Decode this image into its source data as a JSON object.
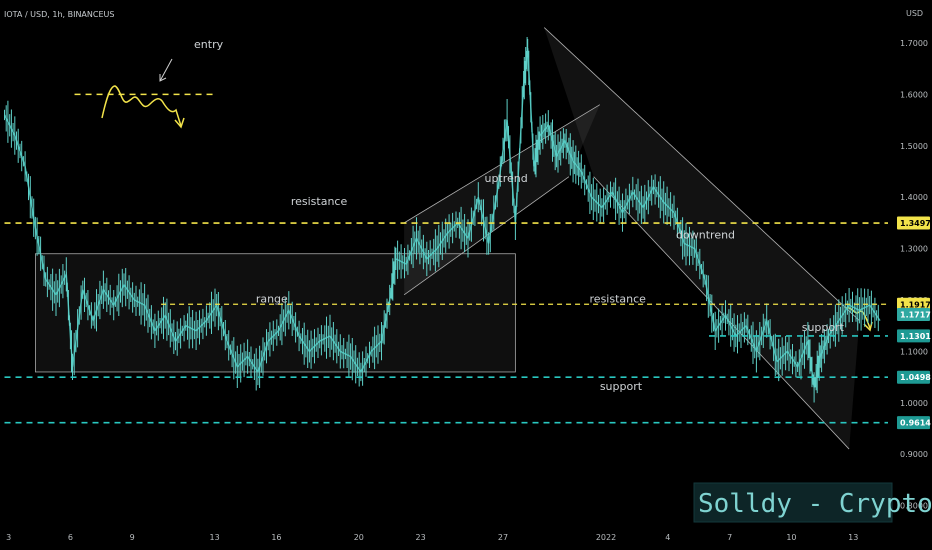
{
  "header": {
    "symbol": "IOTA / USD, 1h, BINANCEUS",
    "currency": "USD"
  },
  "brand_label": "Solldy - Crypto for U",
  "colors": {
    "background": "#000000",
    "price_line": "#3fb6b0",
    "resistance": "#f2e34a",
    "support": "#29c7c0",
    "box": "#9a9a9a"
  },
  "chart_data": {
    "type": "line",
    "title": "IOTA / USD, 1h, BINANCEUS",
    "xlabel": "",
    "ylabel": "USD",
    "ylim": [
      0.77,
      1.77
    ],
    "grid": false,
    "y_ticks": [
      "1.7000",
      "1.6000",
      "1.5000",
      "1.4000",
      "1.3000",
      "1.2000",
      "1.1000",
      "1.0000",
      "0.9000",
      "0.8000"
    ],
    "x_ticks": [
      {
        "label": "3",
        "t": 0.2
      },
      {
        "label": "6",
        "t": 3.2
      },
      {
        "label": "9",
        "t": 6.2
      },
      {
        "label": "13",
        "t": 10.2
      },
      {
        "label": "16",
        "t": 13.2
      },
      {
        "label": "20",
        "t": 17.2
      },
      {
        "label": "23",
        "t": 20.2
      },
      {
        "label": "27",
        "t": 24.2
      },
      {
        "label": "2022",
        "t": 29.2
      },
      {
        "label": "4",
        "t": 32.2
      },
      {
        "label": "7",
        "t": 35.2
      },
      {
        "label": "10",
        "t": 38.2
      },
      {
        "label": "13",
        "t": 41.2
      }
    ],
    "price_series": [
      [
        0.0,
        1.56
      ],
      [
        0.5,
        1.52
      ],
      [
        1.0,
        1.46
      ],
      [
        1.5,
        1.34
      ],
      [
        2.0,
        1.24
      ],
      [
        2.5,
        1.21
      ],
      [
        3.0,
        1.25
      ],
      [
        3.3,
        1.07
      ],
      [
        3.8,
        1.22
      ],
      [
        4.3,
        1.16
      ],
      [
        4.8,
        1.22
      ],
      [
        5.3,
        1.19
      ],
      [
        5.8,
        1.23
      ],
      [
        6.3,
        1.2
      ],
      [
        6.8,
        1.19
      ],
      [
        7.3,
        1.14
      ],
      [
        7.8,
        1.17
      ],
      [
        8.3,
        1.12
      ],
      [
        8.8,
        1.15
      ],
      [
        9.3,
        1.14
      ],
      [
        9.8,
        1.16
      ],
      [
        10.3,
        1.19
      ],
      [
        10.8,
        1.12
      ],
      [
        11.3,
        1.07
      ],
      [
        11.8,
        1.09
      ],
      [
        12.3,
        1.06
      ],
      [
        12.8,
        1.12
      ],
      [
        13.3,
        1.14
      ],
      [
        13.8,
        1.18
      ],
      [
        14.3,
        1.13
      ],
      [
        14.8,
        1.1
      ],
      [
        15.3,
        1.12
      ],
      [
        15.8,
        1.13
      ],
      [
        16.3,
        1.1
      ],
      [
        16.8,
        1.09
      ],
      [
        17.3,
        1.06
      ],
      [
        17.8,
        1.1
      ],
      [
        18.3,
        1.12
      ],
      [
        18.7,
        1.2
      ],
      [
        19.0,
        1.28
      ],
      [
        19.5,
        1.27
      ],
      [
        20.0,
        1.32
      ],
      [
        20.5,
        1.28
      ],
      [
        21.0,
        1.3
      ],
      [
        21.5,
        1.33
      ],
      [
        22.0,
        1.35
      ],
      [
        22.5,
        1.32
      ],
      [
        23.0,
        1.4
      ],
      [
        23.5,
        1.31
      ],
      [
        24.0,
        1.43
      ],
      [
        24.4,
        1.55
      ],
      [
        24.8,
        1.35
      ],
      [
        25.2,
        1.62
      ],
      [
        25.4,
        1.69
      ],
      [
        25.7,
        1.46
      ],
      [
        26.0,
        1.52
      ],
      [
        26.4,
        1.54
      ],
      [
        26.8,
        1.48
      ],
      [
        27.2,
        1.51
      ],
      [
        27.6,
        1.47
      ],
      [
        28.0,
        1.45
      ],
      [
        28.5,
        1.4
      ],
      [
        29.0,
        1.38
      ],
      [
        29.5,
        1.41
      ],
      [
        30.0,
        1.37
      ],
      [
        30.5,
        1.41
      ],
      [
        31.0,
        1.38
      ],
      [
        31.5,
        1.42
      ],
      [
        32.0,
        1.39
      ],
      [
        32.5,
        1.37
      ],
      [
        33.0,
        1.31
      ],
      [
        33.5,
        1.3
      ],
      [
        34.0,
        1.24
      ],
      [
        34.5,
        1.14
      ],
      [
        35.0,
        1.17
      ],
      [
        35.5,
        1.13
      ],
      [
        36.0,
        1.15
      ],
      [
        36.5,
        1.1
      ],
      [
        37.0,
        1.16
      ],
      [
        37.5,
        1.08
      ],
      [
        38.0,
        1.1
      ],
      [
        38.5,
        1.07
      ],
      [
        39.0,
        1.12
      ],
      [
        39.3,
        1.03
      ],
      [
        39.6,
        1.09
      ],
      [
        40.0,
        1.13
      ],
      [
        40.5,
        1.16
      ],
      [
        41.0,
        1.19
      ],
      [
        41.5,
        1.18
      ],
      [
        42.0,
        1.19
      ],
      [
        42.5,
        1.16
      ]
    ],
    "levels": [
      {
        "label": "1.3497",
        "value": 1.3497,
        "kind": "resistance"
      },
      {
        "label": "1.1917",
        "value": 1.1917,
        "kind": "resistance"
      },
      {
        "label": "1.1717",
        "value": 1.1717,
        "kind": "price"
      },
      {
        "label": "1.1301",
        "value": 1.1301,
        "kind": "support"
      },
      {
        "label": "1.0498",
        "value": 1.0498,
        "kind": "support"
      },
      {
        "label": "0.9614",
        "value": 0.9614,
        "kind": "support"
      }
    ],
    "annotations": [
      {
        "text": "entry",
        "t": 9.2,
        "p": 1.69
      },
      {
        "text": "resistance",
        "t": 13.9,
        "p": 1.385
      },
      {
        "text": "uptrend",
        "t": 23.3,
        "p": 1.43
      },
      {
        "text": "range",
        "t": 12.2,
        "p": 1.195
      },
      {
        "text": "resistance",
        "t": 28.4,
        "p": 1.195
      },
      {
        "text": "downtrend",
        "t": 32.6,
        "p": 1.32
      },
      {
        "text": "support",
        "t": 38.7,
        "p": 1.14
      },
      {
        "text": "support",
        "t": 28.9,
        "p": 1.025
      }
    ],
    "range_box": {
      "t0": 1.5,
      "t1": 24.8,
      "p_top": 1.29,
      "p_bottom": 1.06
    },
    "uptrend_channel": {
      "lower": [
        [
          19.4,
          1.21
        ],
        [
          27.4,
          1.44
        ]
      ],
      "upper": [
        [
          19.4,
          1.35
        ],
        [
          28.9,
          1.58
        ]
      ]
    },
    "downtrend_channel": {
      "upper": [
        [
          26.2,
          1.73
        ],
        [
          41.5,
          1.16
        ]
      ],
      "lower": [
        [
          28.6,
          1.44
        ],
        [
          41.0,
          0.91
        ]
      ]
    },
    "entry_level": 1.6
  }
}
